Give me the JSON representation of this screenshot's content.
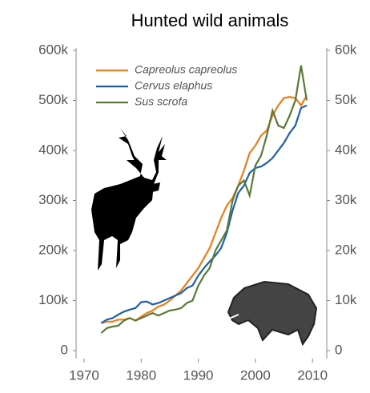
{
  "chart_data": {
    "type": "line",
    "title": "Hunted wild animals",
    "x": [
      1973,
      1974,
      1975,
      1976,
      1977,
      1978,
      1979,
      1980,
      1981,
      1982,
      1983,
      1984,
      1985,
      1986,
      1987,
      1988,
      1989,
      1990,
      1991,
      1992,
      1993,
      1994,
      1995,
      1996,
      1997,
      1998,
      1999,
      2000,
      2001,
      2002,
      2003,
      2004,
      2005,
      2006,
      2007,
      2008,
      2009
    ],
    "xlim": [
      1968.6,
      2012.5
    ],
    "xticks": [
      1970,
      1980,
      1990,
      2000,
      2010
    ],
    "ylim": [
      -16000,
      600000
    ],
    "yticks": [
      {
        "value": 0,
        "label": "0"
      },
      {
        "value": 100000,
        "label": "100k"
      },
      {
        "value": 200000,
        "label": "200k"
      },
      {
        "value": 300000,
        "label": "300k"
      },
      {
        "value": 400000,
        "label": "400k"
      },
      {
        "value": 500000,
        "label": "500k"
      },
      {
        "value": 600000,
        "label": "600k"
      }
    ],
    "y2lim": [
      -1600,
      60000
    ],
    "y2ticks": [
      {
        "value": 0,
        "label": "0"
      },
      {
        "value": 10000,
        "label": "10k"
      },
      {
        "value": 20000,
        "label": "20k"
      },
      {
        "value": 30000,
        "label": "30k"
      },
      {
        "value": 40000,
        "label": "40k"
      },
      {
        "value": 50000,
        "label": "50k"
      },
      {
        "value": 60000,
        "label": "60k"
      }
    ],
    "legend": "upper left",
    "series": [
      {
        "name": "Capreolus capreolus",
        "color": "#f07d1a",
        "values": [
          55000,
          58000,
          58000,
          62000,
          62000,
          65000,
          60000,
          68000,
          75000,
          80000,
          88000,
          92000,
          100000,
          110000,
          120000,
          135000,
          150000,
          165000,
          185000,
          205000,
          235000,
          265000,
          290000,
          305000,
          330000,
          360000,
          395000,
          410000,
          430000,
          440000,
          470000,
          490000,
          505000,
          507000,
          505000,
          490000,
          510000
        ]
      },
      {
        "name": "Cervus elaphus",
        "color": "#1f5fae",
        "values": [
          55000,
          62000,
          65000,
          72000,
          78000,
          82000,
          85000,
          97000,
          98000,
          92000,
          95000,
          100000,
          105000,
          110000,
          115000,
          125000,
          130000,
          150000,
          165000,
          178000,
          190000,
          205000,
          235000,
          280000,
          315000,
          330000,
          355000,
          365000,
          368000,
          375000,
          385000,
          400000,
          415000,
          435000,
          450000,
          485000,
          490000
        ]
      },
      {
        "name": "Sus scrofa",
        "color": "#5a7a3a",
        "axis": "y2",
        "values": [
          3500,
          4500,
          4800,
          5000,
          6000,
          6500,
          6000,
          6500,
          7000,
          7500,
          7000,
          7500,
          8000,
          8200,
          8500,
          9500,
          10000,
          13000,
          15000,
          16500,
          20000,
          22000,
          24000,
          30000,
          33000,
          34000,
          31000,
          37000,
          39000,
          43000,
          48000,
          45000,
          44500,
          47000,
          50000,
          57000,
          50000
        ]
      }
    ]
  }
}
